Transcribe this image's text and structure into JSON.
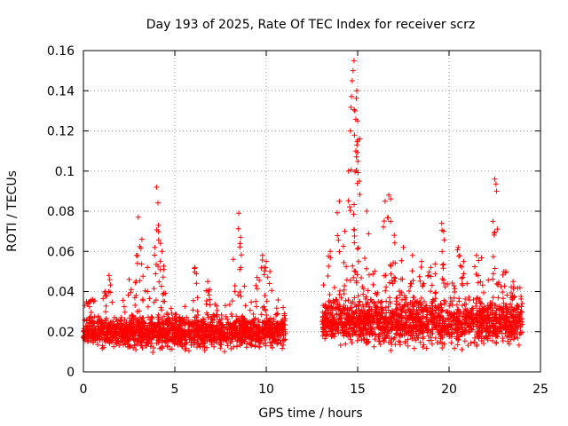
{
  "chart_data": {
    "type": "scatter",
    "title": "Day 193 of 2025, Rate Of TEC Index for receiver scrz",
    "xlabel": "GPS time / hours",
    "ylabel": "ROTI / TECUs",
    "xlim": [
      0,
      25
    ],
    "ylim": [
      0,
      0.16
    ],
    "xticks": [
      0,
      5,
      10,
      15,
      20,
      25
    ],
    "xtick_labels": [
      "0",
      "5",
      "10",
      "15",
      "20",
      "25"
    ],
    "yticks": [
      0,
      0.02,
      0.04,
      0.06,
      0.08,
      0.1,
      0.12,
      0.14,
      0.16
    ],
    "ytick_labels": [
      "0",
      "0.02",
      "0.04",
      "0.06",
      "0.08",
      "0.1",
      "0.12",
      "0.14",
      "0.16"
    ],
    "grid": true,
    "marker": "plus",
    "color": "#ff0000",
    "series": [
      {
        "name": "ROTI",
        "segments": [
          {
            "x_start": 0.0,
            "x_end": 11.05,
            "baseline": 0.02,
            "spread": 0.01
          },
          {
            "x_start": 13.05,
            "x_end": 24.0,
            "baseline": 0.025,
            "spread": 0.014
          }
        ],
        "x": [
          0.2,
          0.5,
          1.2,
          1.4,
          2.5,
          2.9,
          3.0,
          3.2,
          3.5,
          3.9,
          4.0,
          4.1,
          4.3,
          4.4,
          6.1,
          6.8,
          8.2,
          8.5,
          8.6,
          9.5,
          9.8,
          10.0,
          10.2,
          13.5,
          14.0,
          14.3,
          14.5,
          14.6,
          14.7,
          14.75,
          14.8,
          14.85,
          14.9,
          14.95,
          15.0,
          15.1,
          15.5,
          16.5,
          16.7,
          16.8,
          17.0,
          17.5,
          18.0,
          18.5,
          19.0,
          19.6,
          19.7,
          20.5,
          20.8,
          21.5,
          21.6,
          22.4,
          22.5,
          22.6,
          23.0,
          23.5
        ],
        "y": [
          0.034,
          0.036,
          0.04,
          0.048,
          0.046,
          0.058,
          0.077,
          0.066,
          0.052,
          0.062,
          0.092,
          0.073,
          0.06,
          0.051,
          0.052,
          0.045,
          0.056,
          0.079,
          0.067,
          0.047,
          0.058,
          0.055,
          0.05,
          0.06,
          0.085,
          0.07,
          0.1,
          0.12,
          0.145,
          0.15,
          0.155,
          0.13,
          0.11,
          0.14,
          0.125,
          0.095,
          0.08,
          0.085,
          0.088,
          0.075,
          0.068,
          0.062,
          0.058,
          0.055,
          0.052,
          0.074,
          0.07,
          0.062,
          0.055,
          0.058,
          0.048,
          0.075,
          0.096,
          0.09,
          0.05,
          0.045
        ]
      }
    ]
  }
}
